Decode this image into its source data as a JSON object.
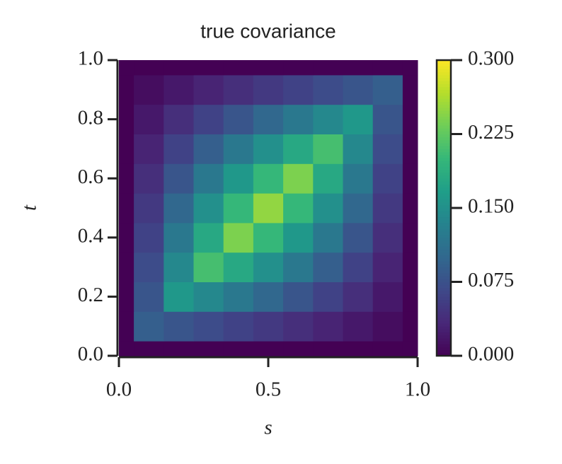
{
  "chart_data": {
    "type": "heatmap",
    "title": "true covariance",
    "xlabel": "s",
    "ylabel": "t",
    "colormap": "viridis",
    "x": [
      0,
      0.1,
      0.2,
      0.3,
      0.4,
      0.5,
      0.6,
      0.7,
      0.8,
      0.9,
      1.0
    ],
    "y": [
      0,
      0.1,
      0.2,
      0.3,
      0.4,
      0.5,
      0.6,
      0.7,
      0.8,
      0.9,
      1.0
    ],
    "z": [
      [
        0,
        0,
        0,
        0,
        0,
        0,
        0,
        0,
        0,
        0,
        0
      ],
      [
        0,
        0.09,
        0.08,
        0.07,
        0.06,
        0.05,
        0.04,
        0.03,
        0.02,
        0.01,
        0
      ],
      [
        0,
        0.08,
        0.16,
        0.14,
        0.12,
        0.1,
        0.08,
        0.06,
        0.04,
        0.02,
        0
      ],
      [
        0,
        0.07,
        0.14,
        0.21,
        0.18,
        0.15,
        0.12,
        0.09,
        0.06,
        0.03,
        0
      ],
      [
        0,
        0.06,
        0.12,
        0.18,
        0.24,
        0.2,
        0.16,
        0.12,
        0.08,
        0.04,
        0
      ],
      [
        0,
        0.05,
        0.1,
        0.15,
        0.2,
        0.25,
        0.2,
        0.15,
        0.1,
        0.05,
        0
      ],
      [
        0,
        0.04,
        0.08,
        0.12,
        0.16,
        0.2,
        0.24,
        0.18,
        0.12,
        0.06,
        0
      ],
      [
        0,
        0.03,
        0.06,
        0.09,
        0.12,
        0.15,
        0.18,
        0.21,
        0.14,
        0.07,
        0
      ],
      [
        0,
        0.02,
        0.04,
        0.06,
        0.08,
        0.1,
        0.12,
        0.14,
        0.16,
        0.08,
        0
      ],
      [
        0,
        0.01,
        0.02,
        0.03,
        0.04,
        0.05,
        0.06,
        0.07,
        0.08,
        0.09,
        0
      ],
      [
        0,
        0,
        0,
        0,
        0,
        0,
        0,
        0,
        0,
        0,
        0
      ]
    ],
    "xlim": [
      0,
      1.0
    ],
    "ylim": [
      0,
      1.0
    ],
    "xticks": [
      {
        "value": 0,
        "label": "0.0"
      },
      {
        "value": 0.5,
        "label": "0.5"
      },
      {
        "value": 1.0,
        "label": "1.0"
      }
    ],
    "yticks": [
      {
        "value": 0,
        "label": "0.0"
      },
      {
        "value": 0.2,
        "label": "0.2"
      },
      {
        "value": 0.4,
        "label": "0.4"
      },
      {
        "value": 0.6,
        "label": "0.6"
      },
      {
        "value": 0.8,
        "label": "0.8"
      },
      {
        "value": 1.0,
        "label": "1.0"
      }
    ],
    "clim": [
      0,
      0.3
    ],
    "cticks": [
      {
        "value": 0,
        "label": "0.000"
      },
      {
        "value": 0.075,
        "label": "0.075"
      },
      {
        "value": 0.15,
        "label": "0.150"
      },
      {
        "value": 0.225,
        "label": "0.225"
      },
      {
        "value": 0.3,
        "label": "0.300"
      }
    ]
  }
}
